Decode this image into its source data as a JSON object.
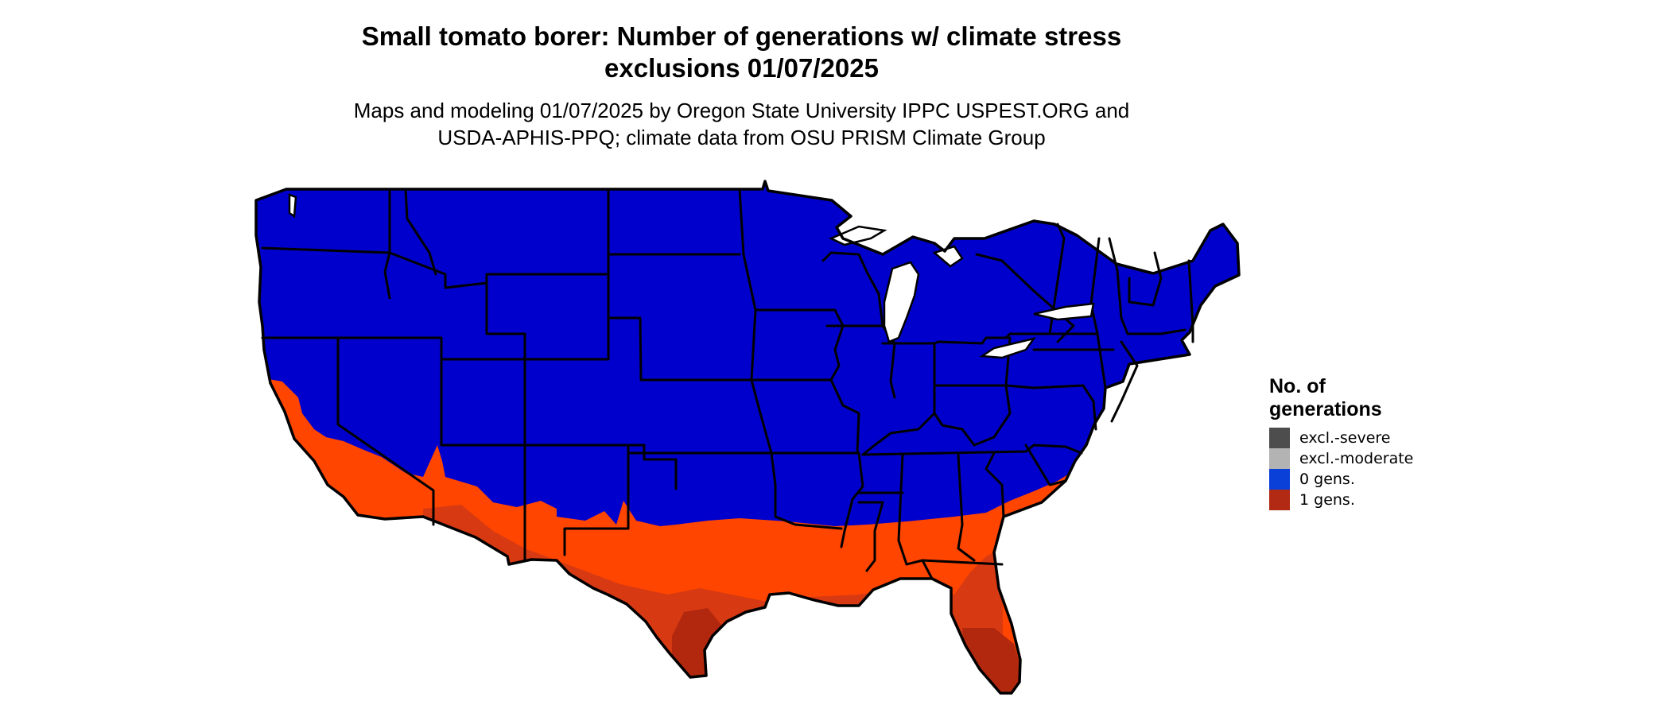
{
  "title_lines": [
    "Small tomato borer: Number of generations w/ climate stress",
    "exclusions 01/07/2025"
  ],
  "subtitle_lines": [
    "Maps and modeling 01/07/2025 by Oregon State University IPPC USPEST.ORG and",
    "USDA-APHIS-PPQ; climate data from OSU PRISM Climate Group"
  ],
  "legend": {
    "title_lines": [
      "No. of",
      "generations"
    ],
    "items": [
      {
        "label": "excl.-severe",
        "color": "#4d4d4d"
      },
      {
        "label": "excl.-moderate",
        "color": "#b3b3b3"
      },
      {
        "label": "0 gens.",
        "color": "#0a3fd8"
      },
      {
        "label": "1 gens.",
        "color": "#b22a14"
      }
    ]
  },
  "map": {
    "region": "contiguous United States",
    "colors": {
      "zero_gens": "#0000cd",
      "one_gen_light": "#ff4500",
      "one_gen_mid": "#d73a12",
      "one_gen_dark": "#b2280f",
      "borders": "#000000",
      "water": "#ffffff"
    }
  }
}
